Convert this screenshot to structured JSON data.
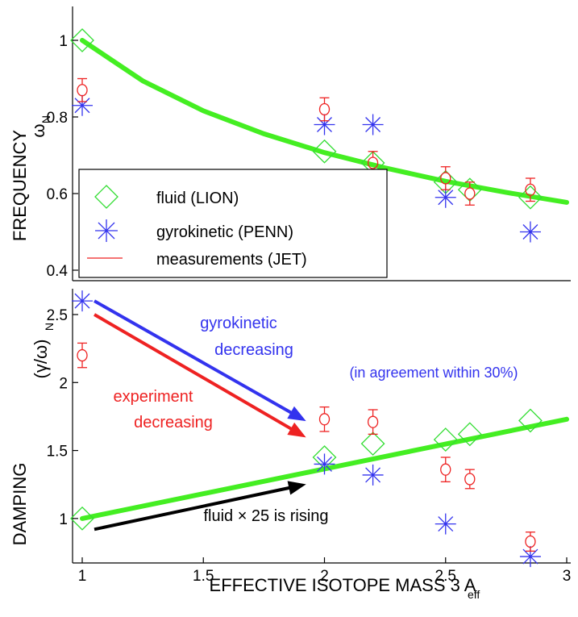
{
  "colors": {
    "fluid": "#33dd33",
    "gyrokinetic": "#3333ee",
    "measurements": "#ee2222",
    "fit_line": "#44ee22",
    "black_arrow": "#000000"
  },
  "chart_data": [
    {
      "type": "scatter",
      "panel": "top",
      "ylabel_main": "FREQUENCY",
      "ylabel_sub_symbol": "ω",
      "ylabel_sub_index": "N",
      "xlim": [
        1,
        3
      ],
      "ylim": [
        0.4,
        1.05
      ],
      "yticks": [
        0.4,
        0.6,
        0.8,
        1
      ],
      "ytick_labels": [
        "0.4",
        "0.6",
        "0.8",
        "1"
      ],
      "grid": false,
      "legend_position": "bottom-left",
      "legend": [
        {
          "label": "fluid (LION)",
          "marker": "diamond",
          "color": "#33dd33"
        },
        {
          "label": "gyrokinetic (PENN)",
          "marker": "star",
          "color": "#3333ee"
        },
        {
          "label": "measurements (JET)",
          "marker": "line",
          "color": "#ee2222"
        }
      ],
      "series": [
        {
          "name": "fluid (LION)",
          "marker": "diamond",
          "x": [
            1.0,
            2.0,
            2.2,
            2.5,
            2.6,
            2.85
          ],
          "y": [
            1.0,
            0.71,
            0.68,
            0.63,
            0.61,
            0.59
          ]
        },
        {
          "name": "gyrokinetic (PENN)",
          "marker": "star",
          "x": [
            1.0,
            2.0,
            2.2,
            2.5,
            2.85
          ],
          "y": [
            0.83,
            0.78,
            0.78,
            0.59,
            0.5
          ]
        },
        {
          "name": "measurements (JET)",
          "marker": "circle-errorbar",
          "x": [
            1.0,
            2.0,
            2.2,
            2.5,
            2.6,
            2.85
          ],
          "y": [
            0.87,
            0.82,
            0.68,
            0.64,
            0.6,
            0.61
          ],
          "err": [
            0.03,
            0.03,
            0.03,
            0.03,
            0.03,
            0.03
          ]
        }
      ],
      "fit": {
        "x": [
          1.0,
          1.25,
          1.5,
          1.75,
          2.0,
          2.25,
          2.5,
          2.75,
          3.0
        ],
        "y": [
          1.0,
          0.894,
          0.816,
          0.756,
          0.707,
          0.667,
          0.632,
          0.603,
          0.577
        ]
      }
    },
    {
      "type": "scatter",
      "panel": "bottom",
      "ylabel_main": "DAMPING",
      "ylabel_sub": "(γ/ω)",
      "ylabel_sub_index": "N",
      "xlabel_main": "EFFECTIVE ISOTOPE MASS 3 A",
      "xlabel_sub": "eff",
      "xlim": [
        1,
        3
      ],
      "ylim": [
        0.65,
        2.75
      ],
      "xticks": [
        1,
        1.5,
        2,
        2.5,
        3
      ],
      "xtick_labels": [
        "1",
        "1.5",
        "2",
        "2.5",
        "3"
      ],
      "yticks": [
        1,
        1.5,
        2,
        2.5
      ],
      "ytick_labels": [
        "1",
        "1.5",
        "2",
        "2.5"
      ],
      "grid": false,
      "series": [
        {
          "name": "fluid (LION)",
          "marker": "diamond",
          "x": [
            1.0,
            2.0,
            2.2,
            2.5,
            2.6,
            2.85
          ],
          "y": [
            1.0,
            1.45,
            1.55,
            1.58,
            1.62,
            1.72
          ]
        },
        {
          "name": "gyrokinetic (PENN)",
          "marker": "star",
          "x": [
            1.0,
            2.0,
            2.2,
            2.5,
            2.85
          ],
          "y": [
            2.6,
            1.4,
            1.32,
            0.96,
            0.72
          ]
        },
        {
          "name": "measurements (JET)",
          "marker": "circle-errorbar",
          "x": [
            1.0,
            2.0,
            2.2,
            2.5,
            2.6,
            2.85
          ],
          "y": [
            2.2,
            1.73,
            1.71,
            1.36,
            1.29,
            0.83
          ],
          "err": [
            0.09,
            0.09,
            0.09,
            0.09,
            0.07,
            0.07
          ]
        }
      ],
      "fit": {
        "x": [
          1.0,
          3.0
        ],
        "y": [
          1.0,
          1.73
        ]
      },
      "annotations": [
        {
          "lines": [
            "gyrokinetic",
            "decreasing"
          ],
          "color": "#3333ee"
        },
        {
          "lines": [
            "(in agreement within 30%)"
          ],
          "color": "#3333ee"
        },
        {
          "lines": [
            "experiment",
            "decreasing"
          ],
          "color": "#ee2222"
        },
        {
          "lines": [
            "fluid × 25 is rising"
          ],
          "color": "#000000"
        }
      ],
      "arrows": [
        {
          "color": "#3333ee",
          "from": [
            1.05,
            2.6
          ],
          "to": [
            1.92,
            1.72
          ]
        },
        {
          "color": "#ee2222",
          "from": [
            1.05,
            2.5
          ],
          "to": [
            1.92,
            1.6
          ]
        },
        {
          "color": "#000000",
          "from": [
            1.05,
            0.92
          ],
          "to": [
            1.92,
            1.25
          ]
        }
      ]
    }
  ]
}
